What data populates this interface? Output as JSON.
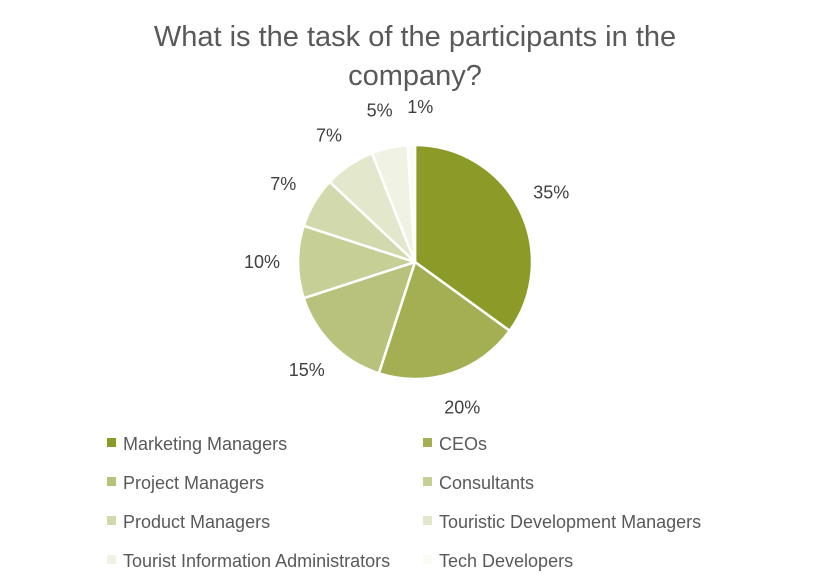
{
  "chart_data": {
    "type": "pie",
    "title": "What is the task of the participants in the company?",
    "title_lines": [
      "What is the task of the participants in the",
      "company?"
    ],
    "legend_position": "bottom",
    "slices": [
      {
        "label": "Marketing Managers",
        "value": 35,
        "display": "35%",
        "color": "#8c9a27"
      },
      {
        "label": "CEOs",
        "value": 20,
        "display": "20%",
        "color": "#a4ae52"
      },
      {
        "label": "Project Managers",
        "value": 15,
        "display": "15%",
        "color": "#b8c27c"
      },
      {
        "label": "Consultants",
        "value": 10,
        "display": "10%",
        "color": "#c6cf95"
      },
      {
        "label": "Product Managers",
        "value": 7,
        "display": "7%",
        "color": "#d2d9ad"
      },
      {
        "label": "Touristic Development Managers",
        "value": 7,
        "display": "7%",
        "color": "#e3e8cd"
      },
      {
        "label": "Tourist Information Administrators",
        "value": 5,
        "display": "5%",
        "color": "#f0f2e3"
      },
      {
        "label": "Tech Developers",
        "value": 1,
        "display": "1%",
        "color": "#fafbf4"
      }
    ]
  }
}
